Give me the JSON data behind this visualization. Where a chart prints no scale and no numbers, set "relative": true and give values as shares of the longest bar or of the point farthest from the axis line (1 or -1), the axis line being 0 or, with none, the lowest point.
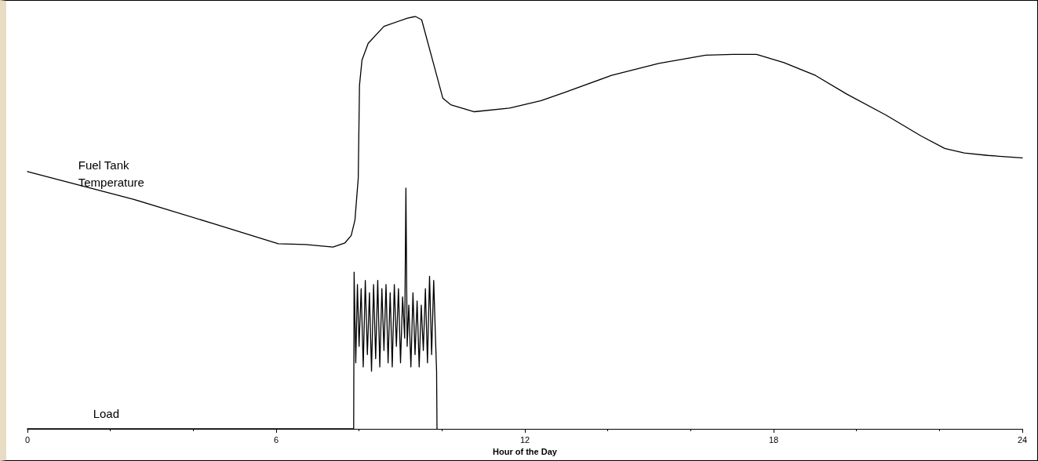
{
  "chart_data": {
    "type": "line",
    "xlabel": "Hour of the Day",
    "relative": true,
    "xlim": [
      0,
      24
    ],
    "xticks": [
      0,
      6,
      12,
      18,
      24
    ],
    "grid": false,
    "legend": false,
    "marker": "none",
    "line_style": "solid",
    "series": [
      {
        "name": "Fuel Tank Temperature",
        "color": "#000000",
        "x": [
          0,
          2.55,
          4.54,
          6.05,
          6.71,
          7.37,
          7.66,
          7.81,
          7.9,
          7.98,
          8.01,
          8.07,
          8.22,
          8.6,
          9.17,
          9.36,
          9.51,
          9.83,
          10.02,
          10.21,
          10.78,
          11.63,
          12.39,
          12.96,
          14.09,
          15.23,
          16.36,
          17.02,
          17.59,
          18.25,
          19.01,
          19.76,
          20.71,
          21.56,
          22.13,
          22.6,
          23.17,
          24
        ],
        "values": [
          0.624,
          0.557,
          0.496,
          0.449,
          0.447,
          0.441,
          0.451,
          0.469,
          0.506,
          0.608,
          0.833,
          0.894,
          0.935,
          0.976,
          0.996,
          1.0,
          0.992,
          0.873,
          0.802,
          0.786,
          0.769,
          0.778,
          0.796,
          0.816,
          0.857,
          0.886,
          0.906,
          0.908,
          0.908,
          0.888,
          0.857,
          0.812,
          0.761,
          0.71,
          0.68,
          0.669,
          0.663,
          0.657
        ]
      },
      {
        "name": "Load",
        "color": "#000000",
        "x": [
          0,
          2,
          7.87,
          7.88,
          7.92,
          7.96,
          8.0,
          8.05,
          8.1,
          8.15,
          8.2,
          8.25,
          8.3,
          8.35,
          8.4,
          8.45,
          8.5,
          8.55,
          8.6,
          8.65,
          8.7,
          8.75,
          8.8,
          8.85,
          8.9,
          8.95,
          9.0,
          9.05,
          9.1,
          9.13,
          9.16,
          9.2,
          9.25,
          9.3,
          9.35,
          9.4,
          9.45,
          9.5,
          9.55,
          9.6,
          9.65,
          9.7,
          9.75,
          9.8,
          9.85,
          9.87,
          9.88
        ],
        "values": [
          0,
          0,
          0,
          0.38,
          0.16,
          0.35,
          0.2,
          0.34,
          0.15,
          0.36,
          0.18,
          0.33,
          0.14,
          0.35,
          0.17,
          0.36,
          0.15,
          0.34,
          0.19,
          0.35,
          0.16,
          0.33,
          0.15,
          0.35,
          0.2,
          0.34,
          0.16,
          0.32,
          0.22,
          0.584,
          0.2,
          0.3,
          0.15,
          0.33,
          0.18,
          0.31,
          0.15,
          0.3,
          0.19,
          0.34,
          0.16,
          0.37,
          0.18,
          0.36,
          0.2,
          0.14,
          0
        ]
      }
    ]
  }
}
